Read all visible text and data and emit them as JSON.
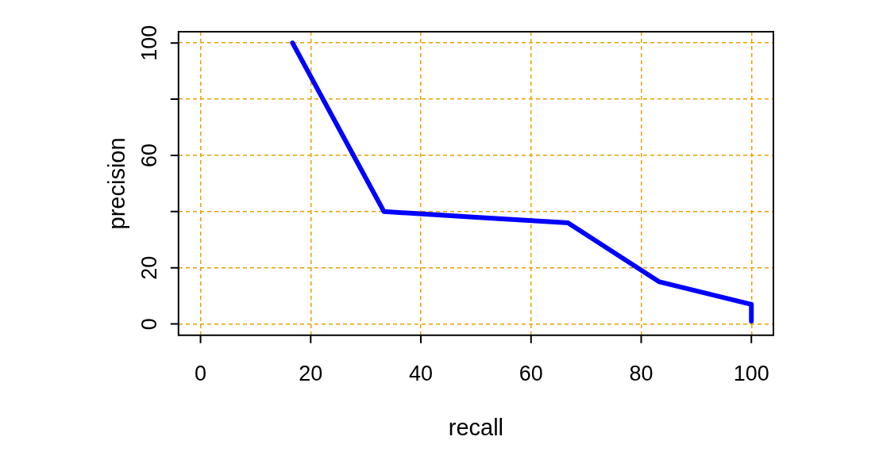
{
  "chart_data": {
    "type": "line",
    "xlabel": "recall",
    "ylabel": "precision",
    "series": [
      {
        "color": "#0000ff",
        "x": [
          16.7,
          33.3,
          50,
          66.7,
          83.3,
          100,
          100
        ],
        "values": [
          100,
          40,
          38,
          36,
          15,
          7,
          1
        ]
      }
    ],
    "xlim": [
      -4,
      104
    ],
    "ylim": [
      -4,
      104
    ],
    "xticks": [
      0,
      20,
      40,
      60,
      80,
      100
    ],
    "yticks": [
      0,
      20,
      {
        "value": 40,
        "label": null
      },
      60,
      {
        "value": 80,
        "label": null
      },
      100
    ],
    "grid": true,
    "legend": false,
    "marker": "none",
    "line_style": "solid"
  }
}
